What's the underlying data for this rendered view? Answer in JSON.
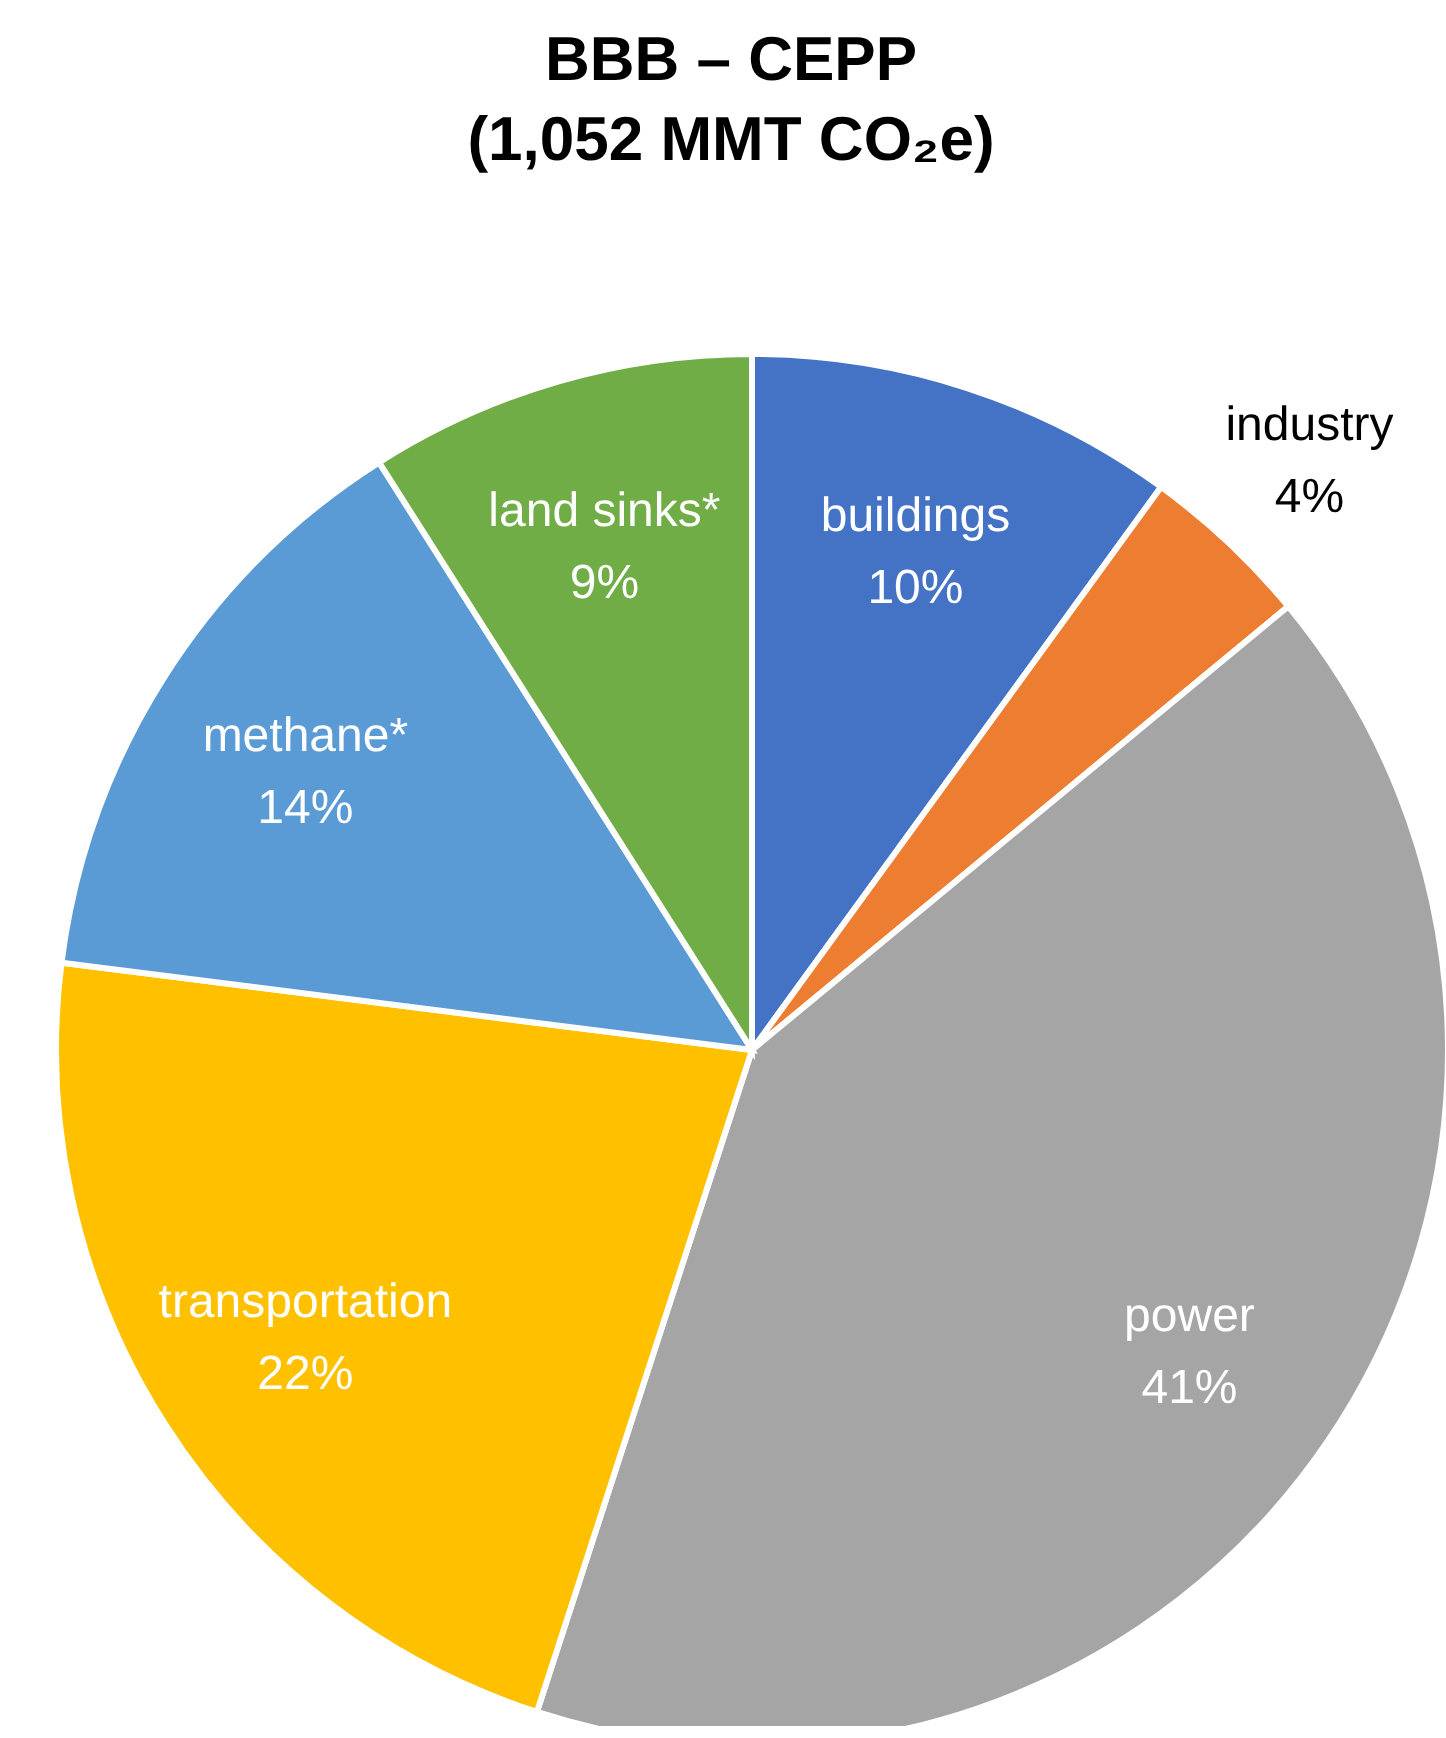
{
  "chart_data": {
    "type": "pie",
    "title": "BBB – CEPP\n(1,052 MMT CO₂e)",
    "categories": [
      "buildings",
      "industry",
      "power",
      "transportation",
      "methane*",
      "land sinks*"
    ],
    "values": [
      10,
      4,
      41,
      22,
      14,
      9
    ],
    "value_labels": [
      "10%",
      "4%",
      "41%",
      "22%",
      "14%",
      "9%"
    ],
    "colors": [
      "#4472c4",
      "#ed7d31",
      "#a5a5a5",
      "#ffc000",
      "#5b9bd5",
      "#70ad47"
    ],
    "legend": false
  }
}
